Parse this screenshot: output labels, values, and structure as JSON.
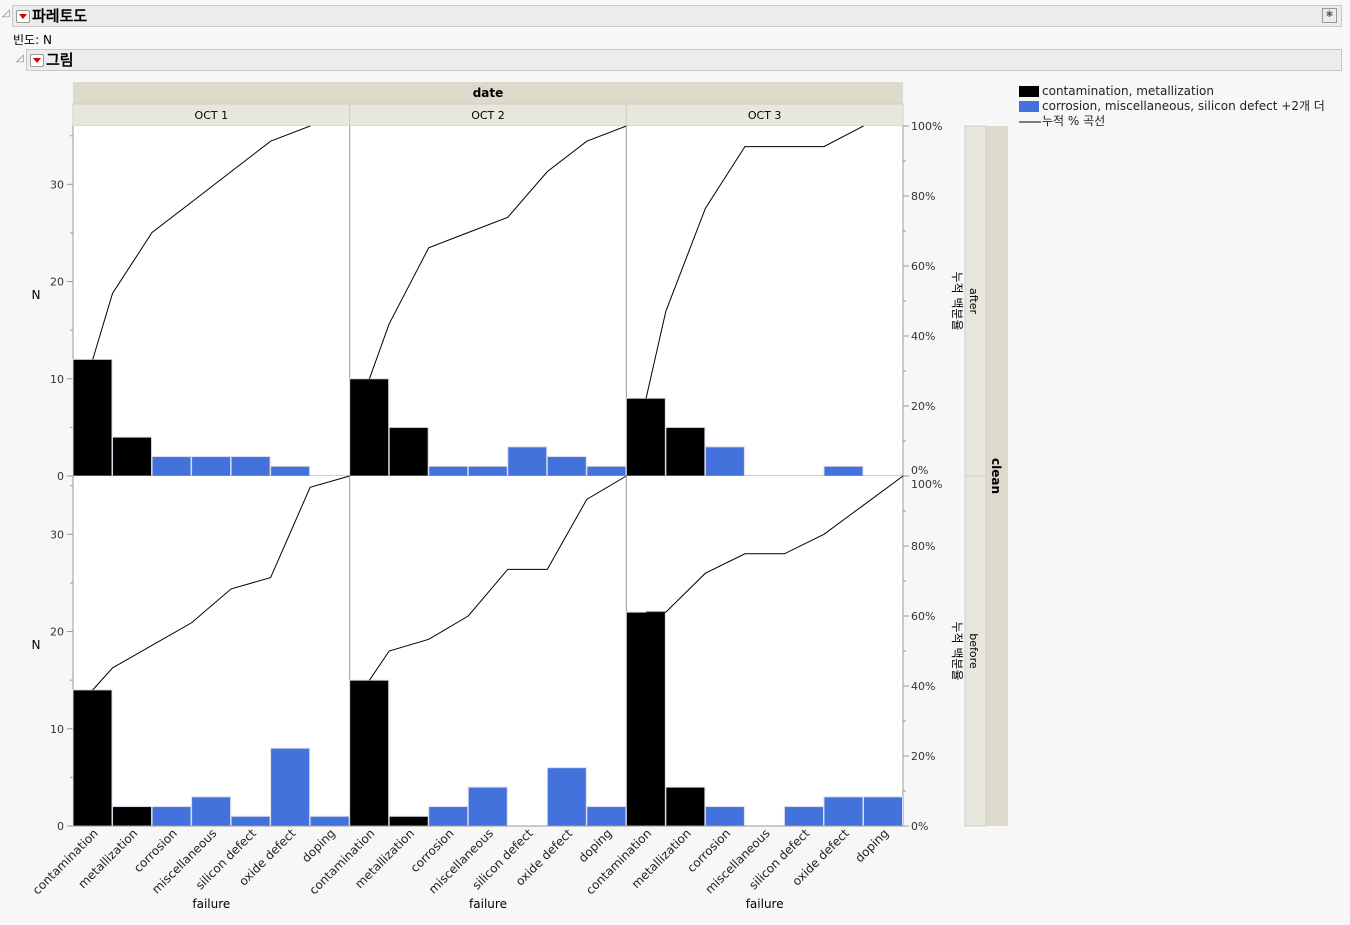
{
  "report_title": "파레토도",
  "freq_label": "빈도: N",
  "outline_title": "그림",
  "chart_data": {
    "type": "bar",
    "title": "",
    "xlabel": "failure",
    "ylabel": "N",
    "y2label": "누적 백분율",
    "ylim": [
      0,
      36
    ],
    "y2lim": [
      0,
      100
    ],
    "yticks": [
      0,
      10,
      20,
      30
    ],
    "y2ticks": [
      "0%",
      "20%",
      "40%",
      "60%",
      "80%",
      "100%"
    ],
    "col_group_label": "date",
    "row_group_label": "clean",
    "columns": [
      "OCT 1",
      "OCT 2",
      "OCT 3"
    ],
    "rows": [
      "after",
      "before"
    ],
    "categories": [
      "contamination",
      "metallization",
      "corrosion",
      "miscellaneous",
      "silicon defect",
      "oxide defect",
      "doping"
    ],
    "category_colors": [
      "#000000",
      "#000000",
      "#4472dc",
      "#4472dc",
      "#4472dc",
      "#4472dc",
      "#4472dc"
    ],
    "panels": {
      "after": {
        "OCT 1": [
          12,
          4,
          2,
          2,
          2,
          1,
          0
        ],
        "OCT 2": [
          10,
          5,
          1,
          1,
          3,
          2,
          1
        ],
        "OCT 3": [
          8,
          5,
          3,
          0,
          0,
          1,
          0
        ]
      },
      "before": {
        "OCT 1": [
          14,
          2,
          2,
          3,
          1,
          8,
          1
        ],
        "OCT 2": [
          15,
          1,
          2,
          4,
          0,
          6,
          2
        ],
        "OCT 3": [
          22,
          4,
          2,
          0,
          2,
          3,
          3
        ]
      }
    },
    "legend": [
      {
        "label": "contamination, metallization",
        "color": "#000000",
        "kind": "bar"
      },
      {
        "label": "corrosion, miscellaneous, silicon defect +2개 더",
        "color": "#4472dc",
        "kind": "bar"
      },
      {
        "label": "누적 % 곡선",
        "color": "#000000",
        "kind": "line"
      }
    ],
    "legend_position": "top-right",
    "grid": false
  }
}
